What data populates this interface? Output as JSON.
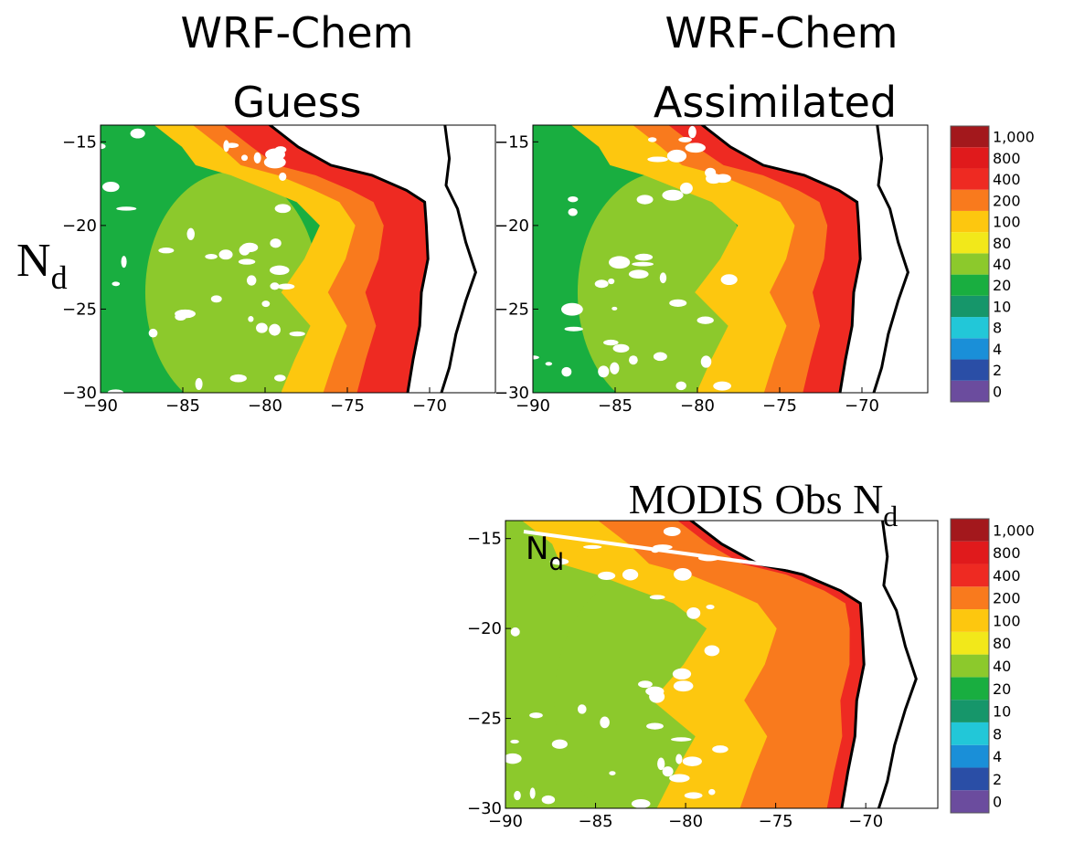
{
  "chart_data": [
    {
      "type": "map",
      "title": [
        "WRF-Chem",
        "Guess"
      ],
      "ylabel": "N",
      "ylabel_sub": "d",
      "xlim": [
        -90,
        -66
      ],
      "ylim": [
        -30,
        -14
      ],
      "xticks": [
        {
          "value": -90,
          "label": "−90"
        },
        {
          "value": -85,
          "label": "−85"
        },
        {
          "value": -80,
          "label": "−80"
        },
        {
          "value": -75,
          "label": "−75"
        },
        {
          "value": -70,
          "label": "−70"
        }
      ],
      "yticks": [
        {
          "value": -30,
          "label": "−30"
        },
        {
          "value": -25,
          "label": "−25"
        },
        {
          "value": -20,
          "label": "−20"
        },
        {
          "value": -15,
          "label": "−15"
        }
      ]
    },
    {
      "type": "map",
      "title": [
        "WRF-Chem",
        "Assimilated"
      ],
      "xlim": [
        -90,
        -66
      ],
      "ylim": [
        -30,
        -14
      ],
      "xticks": [
        {
          "value": -90,
          "label": "−90"
        },
        {
          "value": -85,
          "label": "−85"
        },
        {
          "value": -80,
          "label": "−80"
        },
        {
          "value": -75,
          "label": "−75"
        },
        {
          "value": -70,
          "label": "−70"
        }
      ],
      "yticks": [
        {
          "value": -30,
          "label": "−30"
        },
        {
          "value": -25,
          "label": "−25"
        },
        {
          "value": -20,
          "label": "−20"
        },
        {
          "value": -15,
          "label": "−15"
        }
      ],
      "colorbar": {
        "levels": [
          0,
          2,
          4,
          8,
          10,
          20,
          40,
          80,
          100,
          200,
          400,
          800,
          {
            "value": 1000,
            "label": "1,000"
          }
        ],
        "colors": [
          "#6b4c9e",
          "#2a4ea6",
          "#1a8fd8",
          "#22c7d8",
          "#16966a",
          "#19ae40",
          "#8cc92c",
          "#f2e81a",
          "#fdc70f",
          "#f97a1d",
          "#ee2a22",
          "#e01a1c",
          "#a3181c"
        ]
      }
    },
    {
      "type": "map",
      "title": [
        "MODIS Obs N"
      ],
      "title_sub": "d",
      "inset_label": "N",
      "inset_label_sub": "d",
      "xlim": [
        -90,
        -66
      ],
      "ylim": [
        -30,
        -14
      ],
      "xticks": [
        {
          "value": -90,
          "label": "−90"
        },
        {
          "value": -85,
          "label": "−85"
        },
        {
          "value": -80,
          "label": "−80"
        },
        {
          "value": -75,
          "label": "−75"
        },
        {
          "value": -70,
          "label": "−70"
        }
      ],
      "yticks": [
        {
          "value": -30,
          "label": "−30"
        },
        {
          "value": -25,
          "label": "−25"
        },
        {
          "value": -20,
          "label": "−20"
        },
        {
          "value": -15,
          "label": "−15"
        }
      ],
      "colorbar": {
        "levels": [
          0,
          2,
          4,
          8,
          10,
          20,
          40,
          80,
          100,
          200,
          400,
          800,
          {
            "value": 1000,
            "label": "1,000"
          }
        ],
        "colors": [
          "#6b4c9e",
          "#2a4ea6",
          "#1a8fd8",
          "#22c7d8",
          "#16966a",
          "#19ae40",
          "#8cc92c",
          "#f2e81a",
          "#fdc70f",
          "#f97a1d",
          "#ee2a22",
          "#e01a1c",
          "#a3181c"
        ]
      }
    }
  ]
}
